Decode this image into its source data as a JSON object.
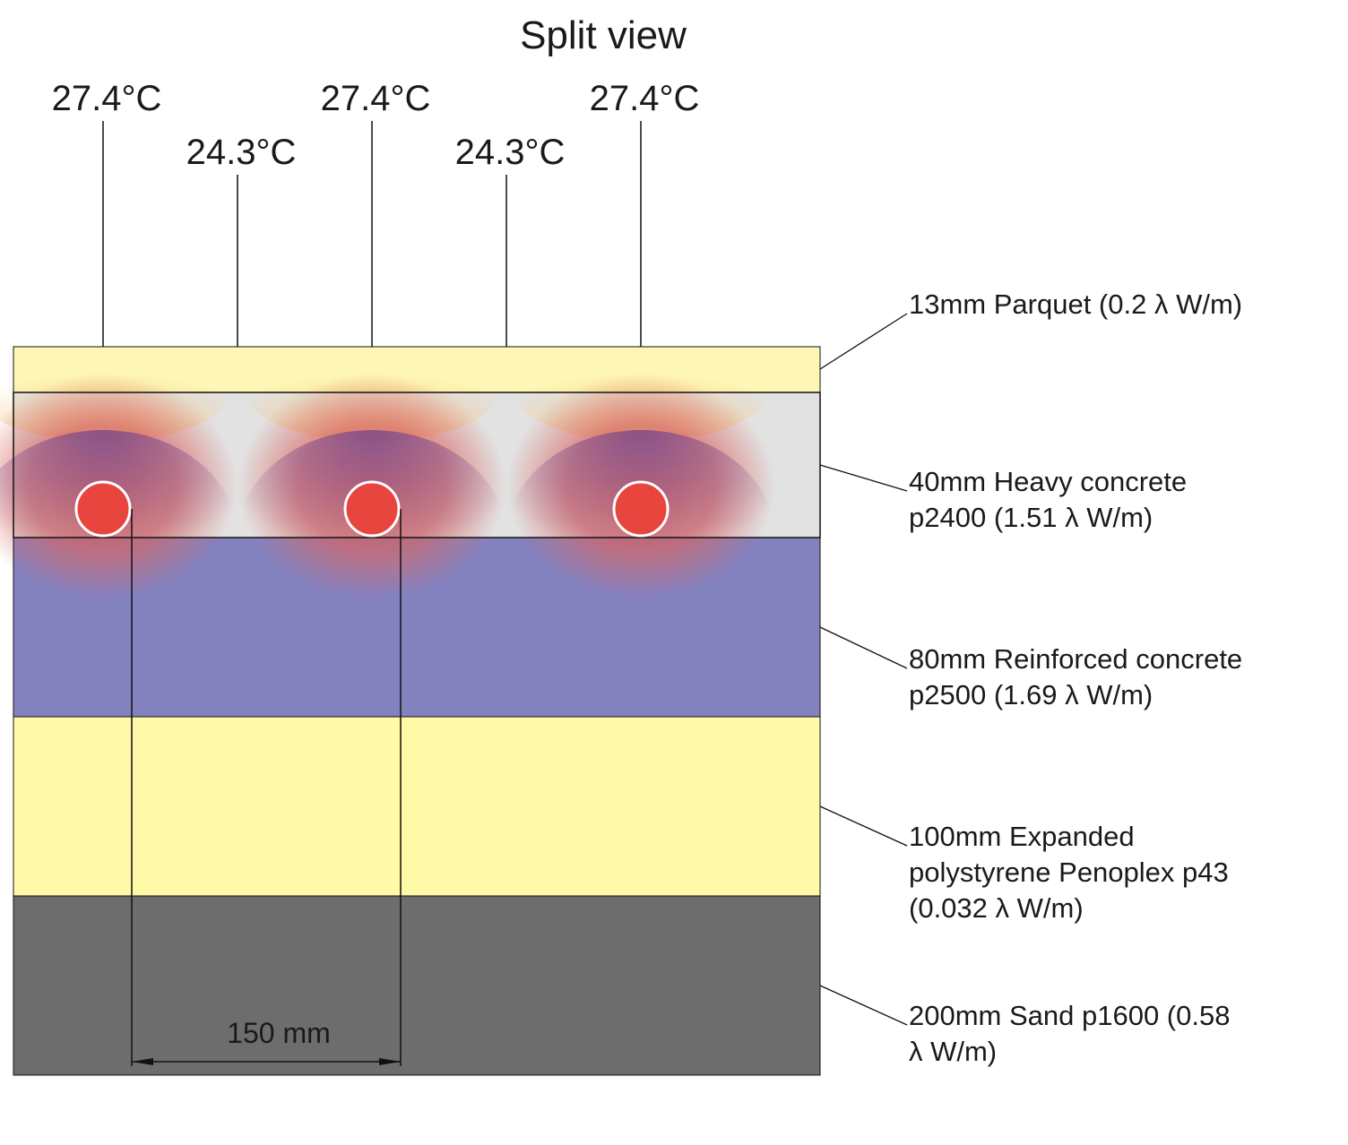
{
  "title": "Split view",
  "colors": {
    "parquet": "#fdf6b4",
    "parquet_warm": "#f6c77a",
    "heavy_concrete": "#e2e2e2",
    "heavy_concrete_hot": "#d96a66",
    "reinforced_concrete": "#8481bf",
    "reinforced_concrete_hot": "#7a4a8c",
    "polystyrene": "#fff9a8",
    "sand": "#6d6d6d",
    "pipe": "#e8453f",
    "line": "#111111"
  },
  "surface_temperatures": [
    {
      "label": "27.4°C"
    },
    {
      "label": "24.3°C"
    },
    {
      "label": "27.4°C"
    },
    {
      "label": "24.3°C"
    },
    {
      "label": "27.4°C"
    }
  ],
  "layers": [
    {
      "key": "parquet",
      "lines": [
        "13mm Parquet (0.2 λ W/m)"
      ]
    },
    {
      "key": "heavy_concrete",
      "lines": [
        "40mm Heavy concrete",
        "p2400 (1.51 λ W/m)"
      ]
    },
    {
      "key": "reinforced_concrete",
      "lines": [
        "80mm Reinforced concrete",
        "p2500 (1.69 λ W/m)"
      ]
    },
    {
      "key": "polystyrene",
      "lines": [
        "100mm Expanded",
        "polystyrene Penoplex p43",
        "(0.032 λ W/m)"
      ]
    },
    {
      "key": "sand",
      "lines": [
        "200mm Sand p1600 (0.58",
        "λ W/m)"
      ]
    }
  ],
  "pipe_spacing": {
    "label": "150 mm"
  }
}
